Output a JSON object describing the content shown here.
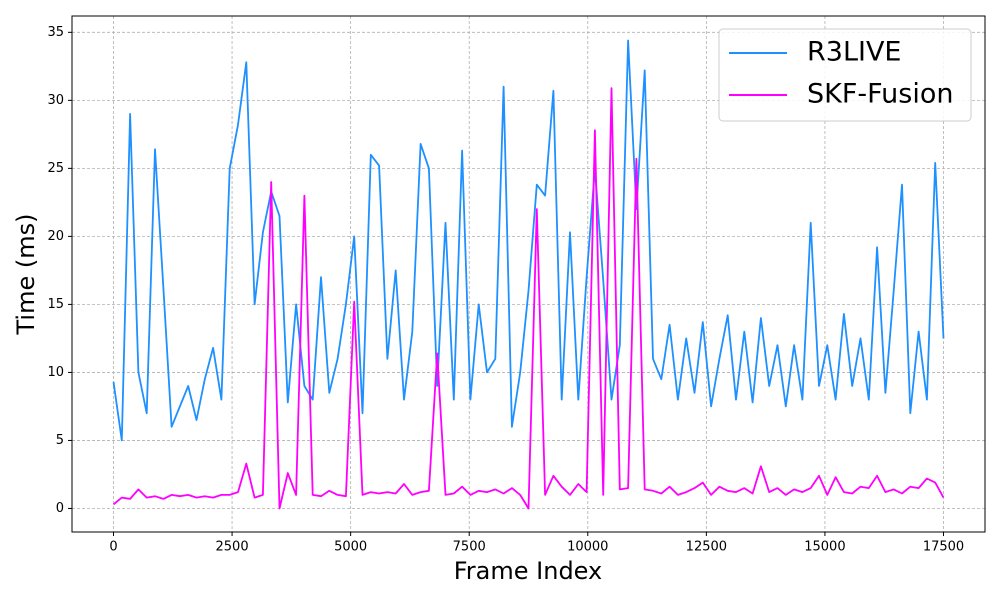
{
  "chart_data": {
    "type": "line",
    "xlabel": "Frame Index",
    "ylabel": "Time (ms)",
    "x": [
      0,
      175,
      350,
      525,
      700,
      875,
      1050,
      1225,
      1400,
      1575,
      1750,
      1925,
      2100,
      2275,
      2450,
      2625,
      2800,
      2975,
      3150,
      3325,
      3500,
      3675,
      3850,
      4025,
      4200,
      4375,
      4550,
      4725,
      4900,
      5075,
      5250,
      5425,
      5600,
      5775,
      5950,
      6125,
      6300,
      6475,
      6650,
      6825,
      7000,
      7175,
      7350,
      7525,
      7700,
      7875,
      8050,
      8225,
      8400,
      8575,
      8750,
      8925,
      9100,
      9275,
      9450,
      9625,
      9800,
      9975,
      10150,
      10325,
      10500,
      10675,
      10850,
      11025,
      11200,
      11375,
      11550,
      11725,
      11900,
      12075,
      12250,
      12425,
      12600,
      12775,
      12950,
      13125,
      13300,
      13475,
      13650,
      13825,
      14000,
      14175,
      14350,
      14525,
      14700,
      14875,
      15050,
      15225,
      15400,
      15575,
      15750,
      15925,
      16100,
      16275,
      16450,
      16625,
      16800,
      16975,
      17150,
      17325,
      17500
    ],
    "series": [
      {
        "name": "R3LIVE",
        "color": "#1e90ff",
        "values": [
          9.3,
          5,
          29,
          10,
          7,
          26.4,
          16.3,
          6,
          7.5,
          9,
          6.5,
          9.5,
          11.8,
          8,
          25,
          28.2,
          32.8,
          15,
          20.3,
          23.3,
          21.5,
          7.8,
          15,
          9,
          8,
          17,
          8.5,
          11,
          15,
          20,
          7,
          26,
          25.2,
          11,
          17.5,
          8,
          13,
          26.8,
          25,
          9,
          21,
          8,
          26.3,
          8,
          15,
          10,
          11,
          31,
          6,
          10,
          16,
          23.8,
          23,
          30.7,
          8,
          20.3,
          8,
          17,
          25,
          16.8,
          8,
          12,
          34.4,
          22,
          32.2,
          11,
          9.5,
          13.5,
          8,
          12.5,
          8.5,
          13.7,
          7.5,
          11,
          14.2,
          8,
          13,
          7.8,
          14,
          9,
          12,
          7.5,
          12,
          8,
          21,
          9,
          12,
          8,
          14.3,
          9,
          12.5,
          8,
          19.2,
          8.5,
          16,
          23.8,
          7,
          13,
          8,
          25.4,
          12.5
        ]
      },
      {
        "name": "SKF-Fusion",
        "color": "#ff00ff",
        "values": [
          0.3,
          0.8,
          0.7,
          1.4,
          0.8,
          0.9,
          0.7,
          1,
          0.9,
          1,
          0.8,
          0.9,
          0.8,
          1,
          1,
          1.2,
          3.3,
          0.8,
          1,
          24,
          0,
          2.6,
          1,
          23,
          1,
          0.9,
          1.3,
          1,
          0.9,
          15.2,
          1,
          1.2,
          1.1,
          1.2,
          1.1,
          1.8,
          1,
          1.2,
          1.3,
          11.4,
          1,
          1.1,
          1.6,
          1,
          1.3,
          1.2,
          1.4,
          1.1,
          1.5,
          1,
          0,
          22,
          1,
          2.4,
          1.6,
          1,
          1.8,
          1.2,
          27.8,
          1,
          30.9,
          1.4,
          1.5,
          25.7,
          1.4,
          1.3,
          1.1,
          1.6,
          1,
          1.2,
          1.5,
          1.9,
          1,
          1.6,
          1.3,
          1.2,
          1.5,
          1.1,
          3.1,
          1.2,
          1.5,
          1,
          1.4,
          1.2,
          1.5,
          2.4,
          1,
          2.3,
          1.2,
          1.1,
          1.6,
          1.5,
          2.4,
          1.2,
          1.4,
          1.1,
          1.6,
          1.5,
          2.2,
          1.9,
          0.8
        ]
      }
    ],
    "xlim": [
      -875,
      18375
    ],
    "ylim": [
      -1.73,
      36.2
    ],
    "xticks": [
      0,
      2500,
      5000,
      7500,
      10000,
      12500,
      15000,
      17500
    ],
    "yticks": [
      0,
      5,
      10,
      15,
      20,
      25,
      30,
      35
    ],
    "grid": true,
    "legend": "upper right"
  }
}
